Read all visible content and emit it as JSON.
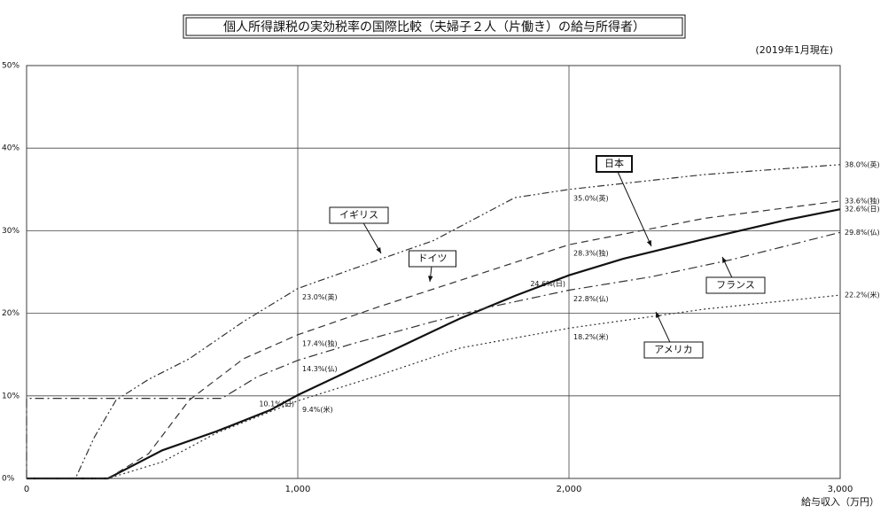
{
  "chart_data": {
    "type": "line",
    "title": "個人所得課税の実効税率の国際比較（夫婦子２人（片働き）の給与所得者）",
    "subtitle": "(2019年1月現在)",
    "x_label": "給与収入（万円）",
    "xlim": [
      0,
      3000
    ],
    "xticks": [
      0,
      {
        "value": 1000,
        "label": "1,000"
      },
      {
        "value": 2000,
        "label": "2,000"
      },
      {
        "value": 3000,
        "label": "3,000"
      }
    ],
    "ylim": [
      0,
      50
    ],
    "yticks": [
      {
        "value": 0,
        "label": "0%"
      },
      {
        "value": 10,
        "label": "10%"
      },
      {
        "value": 20,
        "label": "20%"
      },
      {
        "value": 30,
        "label": "30%"
      },
      {
        "value": 40,
        "label": "40%"
      },
      {
        "value": 50,
        "label": "50%"
      }
    ],
    "grid": true,
    "series": [
      {
        "name": "日本",
        "color": "#111111",
        "style": "solid",
        "x": [
          0,
          300,
          500,
          700,
          900,
          1000,
          1200,
          1400,
          1600,
          1800,
          2000,
          2200,
          2500,
          2800,
          3000
        ],
        "values": [
          0,
          0,
          3.4,
          5.7,
          8.3,
          10.1,
          13.2,
          16.3,
          19.4,
          22.1,
          24.6,
          26.6,
          29.0,
          31.3,
          32.6
        ],
        "value_labels": [
          null,
          null,
          null,
          null,
          null,
          "10.1%(日)",
          null,
          null,
          null,
          null,
          "24.6%(日)",
          null,
          null,
          null,
          "32.6%(日)"
        ]
      },
      {
        "name": "イギリス",
        "color": "#333333",
        "style": "dash-dot-dot",
        "x": [
          0,
          180,
          250,
          330,
          450,
          600,
          800,
          1000,
          1300,
          1500,
          1800,
          2000,
          2500,
          3000
        ],
        "values": [
          0,
          0,
          5,
          9.5,
          12,
          14.5,
          19,
          23.0,
          26.5,
          28.8,
          34,
          35.0,
          36.8,
          38.0
        ],
        "value_labels": [
          null,
          null,
          null,
          null,
          null,
          null,
          null,
          "23.0%(英)",
          null,
          null,
          null,
          "35.0%(英)",
          null,
          "38.0%(英)"
        ]
      },
      {
        "name": "ドイツ",
        "color": "#333333",
        "style": "dashed",
        "x": [
          0,
          300,
          450,
          600,
          800,
          1000,
          1300,
          1600,
          2000,
          2500,
          3000
        ],
        "values": [
          0,
          0,
          3,
          9.5,
          14.5,
          17.4,
          20.8,
          24,
          28.3,
          31.5,
          33.6
        ],
        "value_labels": [
          null,
          null,
          null,
          null,
          null,
          "17.4%(独)",
          null,
          null,
          "28.3%(独)",
          null,
          "33.6%(独)"
        ]
      },
      {
        "name": "フランス",
        "color": "#333333",
        "style": "dash-dot",
        "x": [
          0,
          0,
          720,
          850,
          1000,
          1200,
          1500,
          1700,
          2000,
          2300,
          2600,
          3000
        ],
        "values": [
          0,
          9.7,
          9.7,
          12.3,
          14.3,
          16.3,
          19,
          20.7,
          22.8,
          24.4,
          26.5,
          29.8
        ],
        "value_labels": [
          null,
          null,
          null,
          null,
          "14.3%(仏)",
          null,
          null,
          null,
          "22.8%(仏)",
          null,
          null,
          "29.8%(仏)"
        ]
      },
      {
        "name": "アメリカ",
        "color": "#333333",
        "style": "dotted",
        "x": [
          0,
          300,
          500,
          700,
          1000,
          1300,
          1600,
          2000,
          2500,
          3000
        ],
        "values": [
          0,
          0,
          2,
          5.5,
          9.4,
          12.5,
          15.8,
          18.2,
          20.5,
          22.2
        ],
        "value_labels": [
          null,
          null,
          null,
          null,
          "9.4%(米)",
          null,
          null,
          "18.2%(米)",
          null,
          "22.2%(米)"
        ]
      }
    ]
  }
}
